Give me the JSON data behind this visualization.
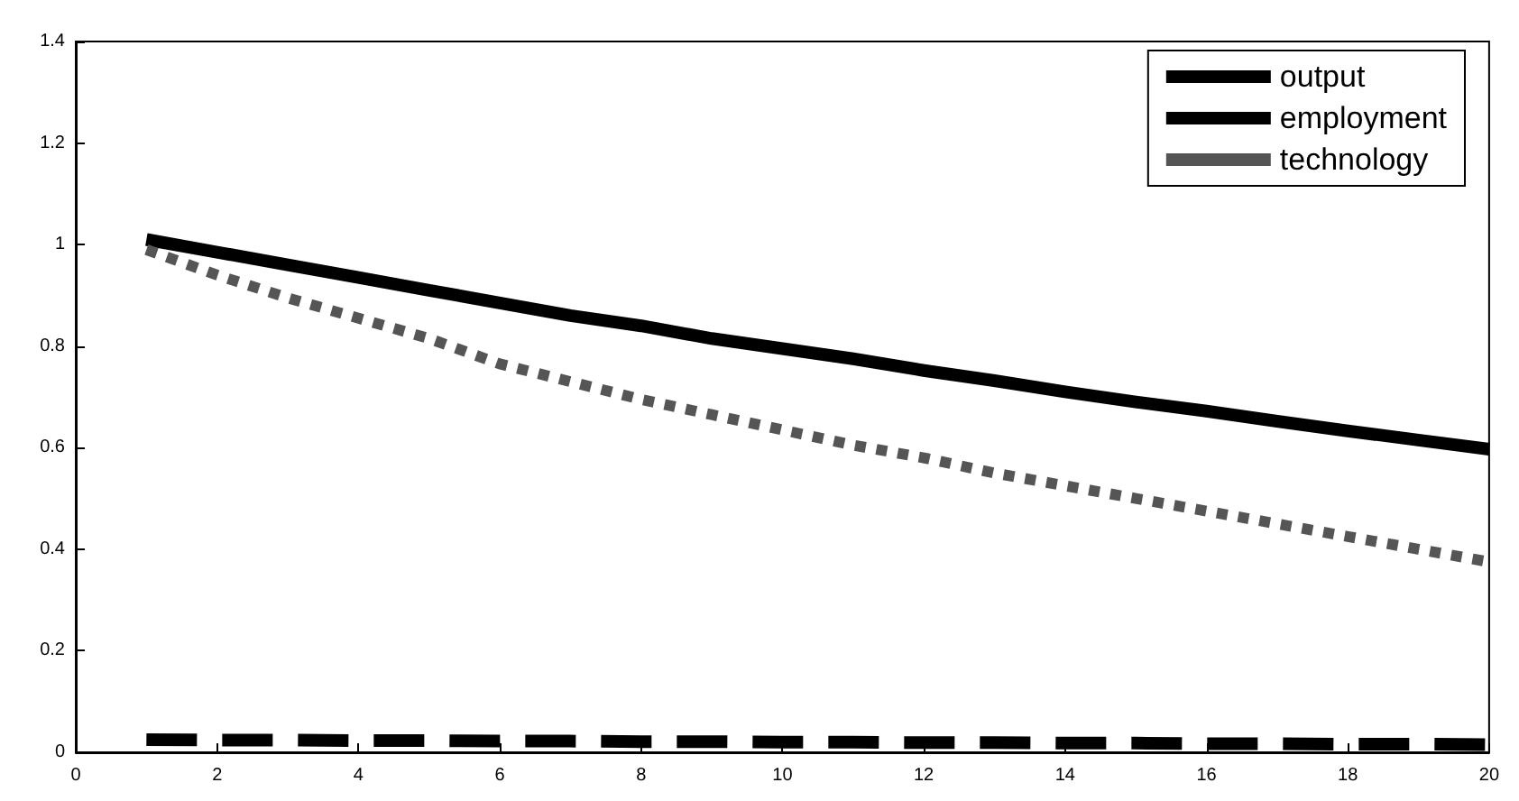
{
  "chart_data": {
    "type": "line",
    "x": [
      1,
      2,
      3,
      4,
      5,
      6,
      7,
      8,
      9,
      10,
      11,
      12,
      13,
      14,
      15,
      16,
      17,
      18,
      19,
      20
    ],
    "series": [
      {
        "name": "output",
        "color": "#000000",
        "line_style": "solid",
        "values": [
          1.01,
          0.985,
          0.96,
          0.935,
          0.91,
          0.885,
          0.86,
          0.84,
          0.815,
          0.795,
          0.775,
          0.752,
          0.732,
          0.71,
          0.69,
          0.672,
          0.652,
          0.633,
          0.615,
          0.597
        ]
      },
      {
        "name": "employment",
        "color": "#000000",
        "line_style": "dashed",
        "values": [
          0.025,
          0.024,
          0.024,
          0.023,
          0.023,
          0.022,
          0.022,
          0.021,
          0.021,
          0.02,
          0.02,
          0.019,
          0.019,
          0.018,
          0.018,
          0.017,
          0.017,
          0.016,
          0.016,
          0.015
        ]
      },
      {
        "name": "technology",
        "color": "#555555",
        "line_style": "dotted",
        "values": [
          0.99,
          0.94,
          0.895,
          0.855,
          0.815,
          0.765,
          0.73,
          0.695,
          0.665,
          0.635,
          0.605,
          0.58,
          0.55,
          0.525,
          0.5,
          0.475,
          0.45,
          0.425,
          0.4,
          0.375
        ]
      }
    ],
    "xlim": [
      0,
      20
    ],
    "xticks": [
      0,
      2,
      4,
      6,
      8,
      10,
      12,
      14,
      16,
      18,
      20
    ],
    "ylim": [
      0,
      1.4
    ],
    "yticks": [
      0,
      0.2,
      0.4,
      0.6,
      0.8,
      1,
      1.2,
      1.4
    ],
    "grid": false,
    "legend": "top right",
    "marker": "none"
  }
}
